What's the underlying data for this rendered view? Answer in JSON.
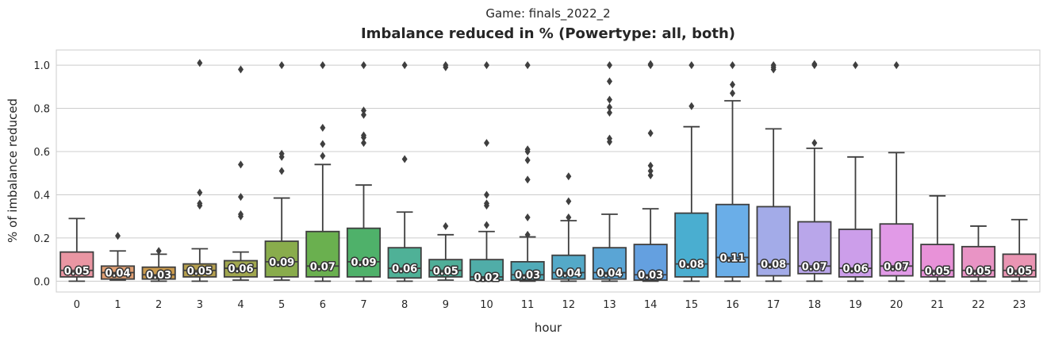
{
  "suptitle": "Game: finals_2022_2",
  "chart_data": {
    "type": "box",
    "title": "Imbalance reduced in % (Powertype: all, both)",
    "xlabel": "hour",
    "ylabel": "% of imbalance reduced",
    "ylim": [
      -0.05,
      1.07
    ],
    "yticks": [
      "0.0",
      "0.2",
      "0.4",
      "0.6",
      "0.8",
      "1.0"
    ],
    "grid": "horizontal",
    "categories": [
      "0",
      "1",
      "2",
      "3",
      "4",
      "5",
      "6",
      "7",
      "8",
      "9",
      "10",
      "11",
      "12",
      "13",
      "14",
      "15",
      "16",
      "17",
      "18",
      "19",
      "20",
      "21",
      "22",
      "23"
    ],
    "colors": [
      "#ea96a3",
      "#e09f73",
      "#cb9b4e",
      "#b6a04f",
      "#a1a74f",
      "#89ac4c",
      "#6ab04f",
      "#4fb16a",
      "#4fb197",
      "#50ae98",
      "#50ada8",
      "#51abb8",
      "#54a9c8",
      "#5aa5d5",
      "#64a0e0",
      "#4aaed0",
      "#6aaee8",
      "#a3abe8",
      "#b9a6ea",
      "#cc9eea",
      "#e19ae7",
      "#e892d8",
      "#e994c5",
      "#ea95b3"
    ],
    "boxes": [
      {
        "whislo": 0.0,
        "q1": 0.02,
        "median": 0.05,
        "q3": 0.135,
        "whishi": 0.29,
        "fliers": [],
        "label": "0.05"
      },
      {
        "whislo": 0.005,
        "q1": 0.01,
        "median": 0.04,
        "q3": 0.07,
        "whishi": 0.14,
        "fliers": [
          0.21
        ],
        "label": "0.04"
      },
      {
        "whislo": 0.0,
        "q1": 0.01,
        "median": 0.03,
        "q3": 0.065,
        "whishi": 0.125,
        "fliers": [
          0.14
        ],
        "label": "0.03"
      },
      {
        "whislo": 0.0,
        "q1": 0.02,
        "median": 0.05,
        "q3": 0.08,
        "whishi": 0.15,
        "fliers": [
          0.35,
          0.36,
          0.41,
          1.01
        ],
        "label": "0.05"
      },
      {
        "whislo": 0.005,
        "q1": 0.02,
        "median": 0.06,
        "q3": 0.095,
        "whishi": 0.135,
        "fliers": [
          0.3,
          0.31,
          0.39,
          0.54,
          0.98
        ],
        "label": "0.06"
      },
      {
        "whislo": 0.005,
        "q1": 0.02,
        "median": 0.09,
        "q3": 0.185,
        "whishi": 0.385,
        "fliers": [
          0.51,
          0.575,
          0.59,
          1.0
        ],
        "label": "0.09"
      },
      {
        "whislo": 0.0,
        "q1": 0.02,
        "median": 0.07,
        "q3": 0.23,
        "whishi": 0.54,
        "fliers": [
          0.58,
          0.635,
          0.71,
          1.0
        ],
        "label": "0.07"
      },
      {
        "whislo": 0.0,
        "q1": 0.02,
        "median": 0.09,
        "q3": 0.245,
        "whishi": 0.445,
        "fliers": [
          0.64,
          0.665,
          0.675,
          0.77,
          0.79,
          1.0
        ],
        "label": "0.09"
      },
      {
        "whislo": 0.0,
        "q1": 0.015,
        "median": 0.06,
        "q3": 0.155,
        "whishi": 0.32,
        "fliers": [
          0.565,
          1.0
        ],
        "label": "0.06"
      },
      {
        "whislo": 0.005,
        "q1": 0.02,
        "median": 0.05,
        "q3": 0.1,
        "whishi": 0.215,
        "fliers": [
          0.255,
          0.99,
          1.0
        ],
        "label": "0.05"
      },
      {
        "whislo": 0.0,
        "q1": 0.005,
        "median": 0.02,
        "q3": 0.1,
        "whishi": 0.23,
        "fliers": [
          0.26,
          0.35,
          0.36,
          0.4,
          0.64,
          1.0
        ],
        "label": "0.02"
      },
      {
        "whislo": 0.0,
        "q1": 0.005,
        "median": 0.03,
        "q3": 0.09,
        "whishi": 0.205,
        "fliers": [
          0.215,
          0.295,
          0.47,
          0.56,
          0.6,
          0.61,
          1.0
        ],
        "label": "0.03"
      },
      {
        "whislo": 0.0,
        "q1": 0.01,
        "median": 0.04,
        "q3": 0.12,
        "whishi": 0.28,
        "fliers": [
          0.295,
          0.37,
          0.485
        ],
        "label": "0.04"
      },
      {
        "whislo": 0.0,
        "q1": 0.01,
        "median": 0.04,
        "q3": 0.155,
        "whishi": 0.31,
        "fliers": [
          0.645,
          0.66,
          0.78,
          0.805,
          0.84,
          0.925,
          1.0
        ],
        "label": "0.04"
      },
      {
        "whislo": 0.0,
        "q1": 0.005,
        "median": 0.03,
        "q3": 0.17,
        "whishi": 0.335,
        "fliers": [
          0.49,
          0.51,
          0.535,
          0.685,
          1.0,
          1.005
        ],
        "label": "0.03"
      },
      {
        "whislo": 0.0,
        "q1": 0.02,
        "median": 0.08,
        "q3": 0.315,
        "whishi": 0.715,
        "fliers": [
          0.81,
          1.0
        ],
        "label": "0.08"
      },
      {
        "whislo": 0.0,
        "q1": 0.02,
        "median": 0.11,
        "q3": 0.355,
        "whishi": 0.835,
        "fliers": [
          0.87,
          0.91,
          1.0
        ],
        "label": "0.11"
      },
      {
        "whislo": 0.0,
        "q1": 0.025,
        "median": 0.08,
        "q3": 0.345,
        "whishi": 0.705,
        "fliers": [
          0.98,
          0.99,
          1.0
        ],
        "label": "0.08"
      },
      {
        "whislo": 0.0,
        "q1": 0.035,
        "median": 0.07,
        "q3": 0.275,
        "whishi": 0.615,
        "fliers": [
          0.64,
          1.0,
          1.005
        ],
        "label": "0.07"
      },
      {
        "whislo": 0.0,
        "q1": 0.02,
        "median": 0.06,
        "q3": 0.24,
        "whishi": 0.575,
        "fliers": [
          1.0
        ],
        "label": "0.06"
      },
      {
        "whislo": 0.0,
        "q1": 0.025,
        "median": 0.07,
        "q3": 0.265,
        "whishi": 0.595,
        "fliers": [
          1.0
        ],
        "label": "0.07"
      },
      {
        "whislo": 0.0,
        "q1": 0.02,
        "median": 0.05,
        "q3": 0.17,
        "whishi": 0.395,
        "fliers": [],
        "label": "0.05"
      },
      {
        "whislo": 0.0,
        "q1": 0.02,
        "median": 0.05,
        "q3": 0.16,
        "whishi": 0.255,
        "fliers": [],
        "label": "0.05"
      },
      {
        "whislo": 0.0,
        "q1": 0.02,
        "median": 0.05,
        "q3": 0.125,
        "whishi": 0.285,
        "fliers": [],
        "label": "0.05"
      }
    ]
  }
}
